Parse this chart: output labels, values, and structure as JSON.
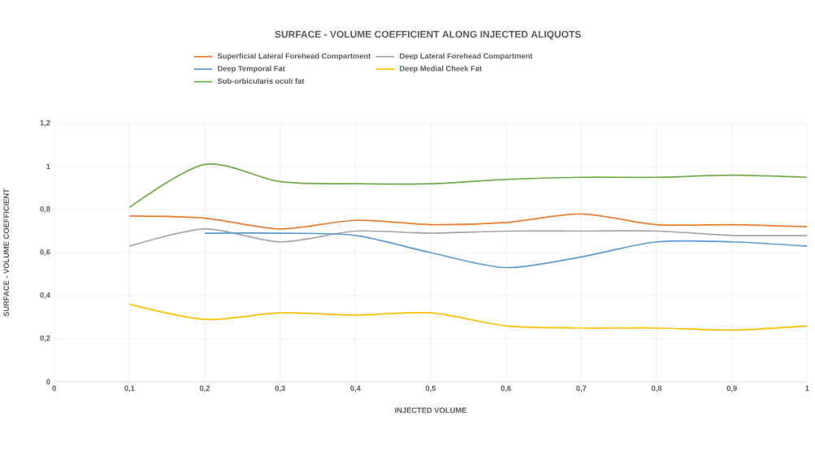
{
  "chart_data": {
    "type": "line",
    "title": "SURFACE - VOLUME COEFFICIENT ALONG INJECTED ALIQUOTS",
    "xlabel": "INJECTED VOLUME",
    "ylabel": "SURFACE - VOLUME COEFFICIENT",
    "x": [
      0.1,
      0.2,
      0.3,
      0.4,
      0.5,
      0.6,
      0.7,
      0.8,
      0.9,
      1.0
    ],
    "series": [
      {
        "name": "Superficial Lateral Forehead Compartment",
        "color": "#ed7d31",
        "values": [
          0.77,
          0.76,
          0.71,
          0.75,
          0.73,
          0.74,
          0.78,
          0.73,
          0.73,
          0.72
        ]
      },
      {
        "name": "Deep Lateral Forehead Compartment",
        "color": "#a5a5a5",
        "values": [
          0.63,
          0.71,
          0.65,
          0.7,
          0.69,
          0.7,
          0.7,
          0.7,
          0.68,
          0.68
        ]
      },
      {
        "name": "Deep Temporal Fat",
        "color": "#5b9bd5",
        "values": [
          null,
          0.69,
          0.69,
          0.68,
          0.6,
          0.53,
          0.58,
          0.65,
          0.65,
          0.63
        ]
      },
      {
        "name": "Deep Medial Cheek Fat",
        "color": "#ffc000",
        "values": [
          0.36,
          0.29,
          0.32,
          0.31,
          0.32,
          0.26,
          0.25,
          0.25,
          0.24,
          0.26
        ]
      },
      {
        "name": "Sub-orbicularis oculi fat",
        "color": "#70ad47",
        "values": [
          0.81,
          1.01,
          0.93,
          0.92,
          0.92,
          0.94,
          0.95,
          0.95,
          0.96,
          0.95
        ]
      }
    ],
    "xlim": [
      0,
      1
    ],
    "xticks": [
      0,
      {
        "value": 0.1,
        "label": "0,1"
      },
      {
        "value": 0.2,
        "label": "0,2"
      },
      {
        "value": 0.3,
        "label": "0,3"
      },
      {
        "value": 0.4,
        "label": "0,4"
      },
      {
        "value": 0.5,
        "label": "0,5"
      },
      {
        "value": 0.6,
        "label": "0,6"
      },
      {
        "value": 0.7,
        "label": "0,7"
      },
      {
        "value": 0.8,
        "label": "0,8"
      },
      {
        "value": 0.9,
        "label": "0,9"
      },
      1
    ],
    "ylim": [
      0,
      1.2
    ],
    "yticks": [
      0,
      {
        "value": 0.2,
        "label": "0,2"
      },
      {
        "value": 0.4,
        "label": "0,4"
      },
      {
        "value": 0.6,
        "label": "0,6"
      },
      {
        "value": 0.8,
        "label": "0,8"
      },
      1,
      {
        "value": 1.2,
        "label": "1,2"
      }
    ],
    "grid": true,
    "legend": "top",
    "marker": "none",
    "line_style": "solid"
  }
}
